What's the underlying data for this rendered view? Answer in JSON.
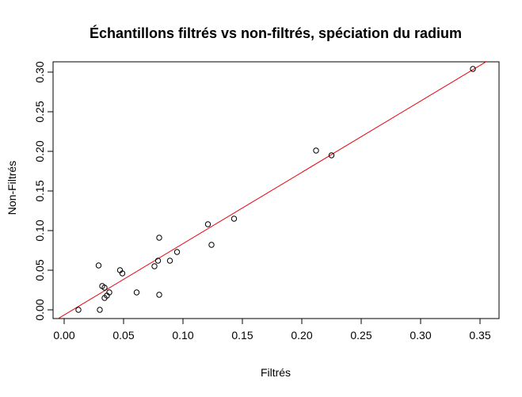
{
  "chart_data": {
    "type": "scatter",
    "title": "Échantillons filtrés vs non-filtrés, spéciation du radium",
    "xlabel": "Filtrés",
    "ylabel": "Non-Filtrés",
    "xlim": [
      0,
      0.35
    ],
    "ylim": [
      0,
      0.3
    ],
    "x_ticks": [
      0.0,
      0.05,
      0.1,
      0.15,
      0.2,
      0.25,
      0.3,
      0.35
    ],
    "x_tick_labels": [
      "0.00",
      "0.05",
      "0.10",
      "0.15",
      "0.20",
      "0.25",
      "0.30",
      "0.35"
    ],
    "y_ticks": [
      0.0,
      0.05,
      0.1,
      0.15,
      0.2,
      0.25,
      0.3
    ],
    "y_tick_labels": [
      "0.00",
      "0.05",
      "0.10",
      "0.15",
      "0.20",
      "0.25",
      "0.30"
    ],
    "grid": false,
    "points": [
      {
        "x": 0.012,
        "y": 0.0
      },
      {
        "x": 0.029,
        "y": 0.056
      },
      {
        "x": 0.03,
        "y": 0.0
      },
      {
        "x": 0.032,
        "y": 0.03
      },
      {
        "x": 0.034,
        "y": 0.028
      },
      {
        "x": 0.034,
        "y": 0.015
      },
      {
        "x": 0.036,
        "y": 0.018
      },
      {
        "x": 0.038,
        "y": 0.022
      },
      {
        "x": 0.047,
        "y": 0.05
      },
      {
        "x": 0.049,
        "y": 0.046
      },
      {
        "x": 0.061,
        "y": 0.022
      },
      {
        "x": 0.076,
        "y": 0.055
      },
      {
        "x": 0.079,
        "y": 0.062
      },
      {
        "x": 0.08,
        "y": 0.091
      },
      {
        "x": 0.08,
        "y": 0.019
      },
      {
        "x": 0.089,
        "y": 0.062
      },
      {
        "x": 0.095,
        "y": 0.073
      },
      {
        "x": 0.121,
        "y": 0.108
      },
      {
        "x": 0.124,
        "y": 0.082
      },
      {
        "x": 0.143,
        "y": 0.115
      },
      {
        "x": 0.212,
        "y": 0.201
      },
      {
        "x": 0.225,
        "y": 0.195
      },
      {
        "x": 0.344,
        "y": 0.304
      }
    ],
    "fit_line": {
      "intercept": -0.0065,
      "slope": 0.9
    },
    "colors": {
      "points": "#000000",
      "fit_line": "#e8000b"
    }
  }
}
